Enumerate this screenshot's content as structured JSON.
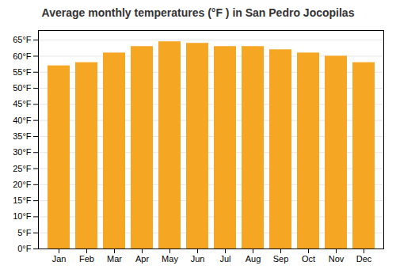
{
  "chart_data": {
    "type": "bar",
    "title": "Average monthly temperatures (°F ) in San Pedro Jocopilas",
    "categories": [
      "Jan",
      "Feb",
      "Mar",
      "Apr",
      "May",
      "Jun",
      "Jul",
      "Aug",
      "Sep",
      "Oct",
      "Nov",
      "Dec"
    ],
    "values": [
      57,
      58,
      61,
      63,
      64.5,
      64,
      63,
      63,
      62,
      61,
      60,
      58
    ],
    "color": "#F5A623",
    "ylim": [
      0,
      68
    ],
    "yticks": [
      {
        "value": 0,
        "label": "0°F"
      },
      {
        "value": 5,
        "label": "5°F"
      },
      {
        "value": 10,
        "label": "10°F"
      },
      {
        "value": 15,
        "label": "15°F"
      },
      {
        "value": 20,
        "label": "20°F"
      },
      {
        "value": 25,
        "label": "25°F"
      },
      {
        "value": 30,
        "label": "30°F"
      },
      {
        "value": 35,
        "label": "35°F"
      },
      {
        "value": 40,
        "label": "40°F"
      },
      {
        "value": 45,
        "label": "45°F"
      },
      {
        "value": 50,
        "label": "50°F"
      },
      {
        "value": 55,
        "label": "55°F"
      },
      {
        "value": 60,
        "label": "60°F"
      },
      {
        "value": 65,
        "label": "65°F"
      }
    ],
    "grid": true
  }
}
